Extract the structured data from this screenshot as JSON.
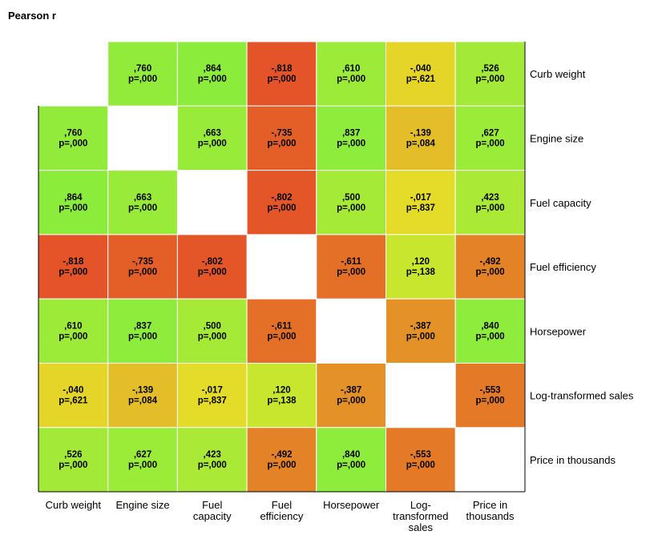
{
  "title": "Pearson r",
  "chart_data": {
    "type": "heatmap",
    "title": "Pearson r",
    "x_labels": [
      [
        "Curb weight"
      ],
      [
        "Engine size"
      ],
      [
        "Fuel",
        "capacity"
      ],
      [
        "Fuel",
        "efficiency"
      ],
      [
        "Horsepower"
      ],
      [
        "Log-",
        "transformed",
        "sales"
      ],
      [
        "Price in",
        "thousands"
      ]
    ],
    "y_labels": [
      "Curb weight",
      "Engine size",
      "Fuel capacity",
      "Fuel efficiency",
      "Horsepower",
      "Log-transformed sales",
      "Price in thousands"
    ],
    "cells": [
      [
        null,
        {
          "r": ",760",
          "p": "p=,000"
        },
        {
          "r": ",864",
          "p": "p=,000"
        },
        {
          "r": "-,818",
          "p": "p=,000"
        },
        {
          "r": ",610",
          "p": "p=,000"
        },
        {
          "r": "-,040",
          "p": "p=,621"
        },
        {
          "r": ",526",
          "p": "p=,000"
        }
      ],
      [
        {
          "r": ",760",
          "p": "p=,000"
        },
        null,
        {
          "r": ",663",
          "p": "p=,000"
        },
        {
          "r": "-,735",
          "p": "p=,000"
        },
        {
          "r": ",837",
          "p": "p=,000"
        },
        {
          "r": "-,139",
          "p": "p=,084"
        },
        {
          "r": ",627",
          "p": "p=,000"
        }
      ],
      [
        {
          "r": ",864",
          "p": "p=,000"
        },
        {
          "r": ",663",
          "p": "p=,000"
        },
        null,
        {
          "r": "-,802",
          "p": "p=,000"
        },
        {
          "r": ",500",
          "p": "p=,000"
        },
        {
          "r": "-,017",
          "p": "p=,837"
        },
        {
          "r": ",423",
          "p": "p=,000"
        }
      ],
      [
        {
          "r": "-,818",
          "p": "p=,000"
        },
        {
          "r": "-,735",
          "p": "p=,000"
        },
        {
          "r": "-,802",
          "p": "p=,000"
        },
        null,
        {
          "r": "-,611",
          "p": "p=,000"
        },
        {
          "r": ",120",
          "p": "p=,138"
        },
        {
          "r": "-,492",
          "p": "p=,000"
        }
      ],
      [
        {
          "r": ",610",
          "p": "p=,000"
        },
        {
          "r": ",837",
          "p": "p=,000"
        },
        {
          "r": ",500",
          "p": "p=,000"
        },
        {
          "r": "-,611",
          "p": "p=,000"
        },
        null,
        {
          "r": "-,387",
          "p": "p=,000"
        },
        {
          "r": ",840",
          "p": "p=,000"
        }
      ],
      [
        {
          "r": "-,040",
          "p": "p=,621"
        },
        {
          "r": "-,139",
          "p": "p=,084"
        },
        {
          "r": "-,017",
          "p": "p=,837"
        },
        {
          "r": ",120",
          "p": "p=,138"
        },
        {
          "r": "-,387",
          "p": "p=,000"
        },
        null,
        {
          "r": "-,553",
          "p": "p=,000"
        }
      ],
      [
        {
          "r": ",526",
          "p": "p=,000"
        },
        {
          "r": ",627",
          "p": "p=,000"
        },
        {
          "r": ",423",
          "p": "p=,000"
        },
        {
          "r": "-,492",
          "p": "p=,000"
        },
        {
          "r": ",840",
          "p": "p=,000"
        },
        {
          "r": "-,553",
          "p": "p=,000"
        },
        null
      ]
    ],
    "color_scale": {
      "negative": "#e45028",
      "zero": "#e4e428",
      "positive": "#8cec3c"
    }
  }
}
